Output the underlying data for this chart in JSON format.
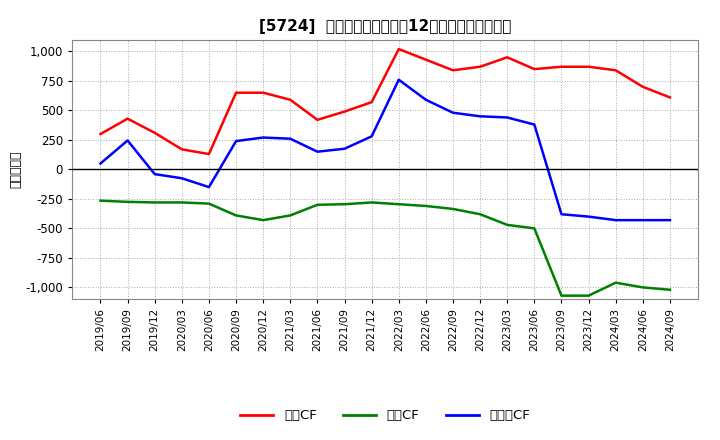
{
  "title": "[5724]  キャッシュフローの12か月移動合計の推移",
  "ylabel": "（百万円）",
  "ylim": [
    -1100,
    1100
  ],
  "yticks": [
    -1000,
    -750,
    -500,
    -250,
    0,
    250,
    500,
    750,
    1000
  ],
  "background_color": "#ffffff",
  "grid_color": "#aaaaaa",
  "dates": [
    "2019/06",
    "2019/09",
    "2019/12",
    "2020/03",
    "2020/06",
    "2020/09",
    "2020/12",
    "2021/03",
    "2021/06",
    "2021/09",
    "2021/12",
    "2022/03",
    "2022/06",
    "2022/09",
    "2022/12",
    "2023/03",
    "2023/06",
    "2023/09",
    "2023/12",
    "2024/03",
    "2024/06",
    "2024/09"
  ],
  "operating_cf": [
    300,
    430,
    310,
    170,
    130,
    650,
    650,
    590,
    420,
    490,
    570,
    1020,
    930,
    840,
    870,
    950,
    850,
    870,
    870,
    840,
    700,
    610
  ],
  "investing_cf": [
    -265,
    -275,
    -280,
    -280,
    -290,
    -390,
    -430,
    -390,
    -300,
    -295,
    -280,
    -295,
    -310,
    -335,
    -380,
    -470,
    -500,
    -1070,
    -1070,
    -960,
    -1000,
    -1020
  ],
  "free_cf": [
    50,
    245,
    -40,
    -75,
    -150,
    240,
    270,
    260,
    150,
    175,
    280,
    760,
    590,
    480,
    450,
    440,
    380,
    -380,
    -400,
    -430,
    -430,
    -430
  ],
  "operating_color": "#ff0000",
  "investing_color": "#008000",
  "free_cf_color": "#0000ff",
  "legend_labels": [
    "営業CF",
    "投資CF",
    "フリーCF"
  ]
}
